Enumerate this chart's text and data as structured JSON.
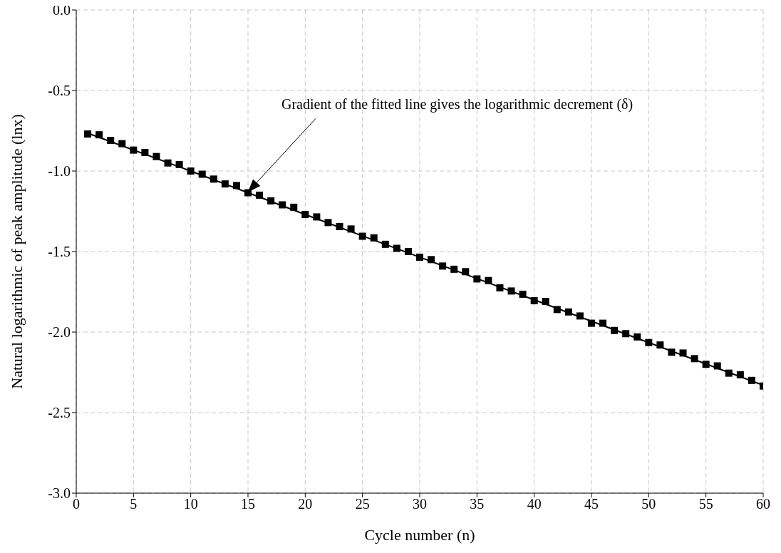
{
  "chart_data": {
    "type": "scatter",
    "xlabel": "Cycle number (n)",
    "ylabel": "Natural logarithmic of peak amplitude (lnx)",
    "xlim": [
      0,
      60
    ],
    "xticks": [
      0,
      5,
      10,
      15,
      20,
      25,
      30,
      35,
      40,
      45,
      50,
      55,
      60
    ],
    "ylim": [
      -3.0,
      0.0
    ],
    "yticks": [
      {
        "value": -3,
        "label": "-3.0"
      },
      {
        "value": -2.5,
        "label": "-2.5"
      },
      {
        "value": -2,
        "label": "-2.0"
      },
      {
        "value": -1.5,
        "label": "-1.5"
      },
      {
        "value": -1,
        "label": "-1.0"
      },
      {
        "value": -0.5,
        "label": "-0.5"
      },
      {
        "value": 0,
        "label": "0.0"
      }
    ],
    "grid": true,
    "legend": false,
    "annotations": [
      "Gradient of the fitted line gives the logarithmic decrement (δ)"
    ],
    "series": [
      {
        "color": "#000000",
        "marker": "square",
        "x": [
          1,
          2,
          3,
          4,
          5,
          6,
          7,
          8,
          9,
          10,
          11,
          12,
          13,
          14,
          15,
          16,
          17,
          18,
          19,
          20,
          21,
          22,
          23,
          24,
          25,
          26,
          27,
          28,
          29,
          30,
          31,
          32,
          33,
          34,
          35,
          36,
          37,
          38,
          39,
          40,
          41,
          42,
          43,
          44,
          45,
          46,
          47,
          48,
          49,
          50,
          51,
          52,
          53,
          54,
          55,
          56,
          57,
          58,
          59,
          60
        ],
        "values": [
          -0.77,
          -0.775,
          -0.81,
          -0.83,
          -0.87,
          -0.885,
          -0.91,
          -0.95,
          -0.96,
          -1.0,
          -1.02,
          -1.05,
          -1.08,
          -1.09,
          -1.135,
          -1.15,
          -1.185,
          -1.21,
          -1.225,
          -1.27,
          -1.285,
          -1.32,
          -1.345,
          -1.36,
          -1.405,
          -1.415,
          -1.455,
          -1.48,
          -1.5,
          -1.535,
          -1.55,
          -1.59,
          -1.61,
          -1.625,
          -1.67,
          -1.68,
          -1.725,
          -1.745,
          -1.765,
          -1.805,
          -1.81,
          -1.86,
          -1.875,
          -1.9,
          -1.945,
          -1.945,
          -1.99,
          -2.01,
          -2.03,
          -2.065,
          -2.08,
          -2.125,
          -2.13,
          -2.165,
          -2.2,
          -2.21,
          -2.255,
          -2.265,
          -2.3,
          -2.335
        ]
      },
      {
        "type": "line",
        "color": "#000000",
        "marker": "none",
        "line_style": "solid",
        "x": [
          1,
          10,
          20,
          30,
          40,
          50,
          60
        ],
        "values": [
          -0.765,
          -1.0,
          -1.27,
          -1.535,
          -1.8,
          -2.065,
          -2.33
        ]
      }
    ]
  }
}
